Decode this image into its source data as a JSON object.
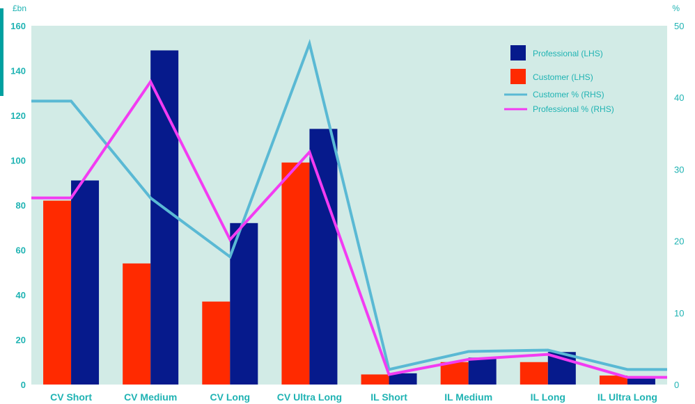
{
  "chart_data": {
    "type": "bar",
    "categories": [
      "CV Short",
      "CV Medium",
      "CV Long",
      "CV Ultra Long",
      "IL Short",
      "IL Medium",
      "IL Long",
      "IL Ultra Long"
    ],
    "y_left_unit": "£bn",
    "y_right_unit": "%",
    "ylim_left": [
      0,
      160
    ],
    "ylim_right": [
      0,
      50
    ],
    "yticks_left": [
      0,
      20,
      40,
      60,
      80,
      100,
      120,
      140,
      160
    ],
    "yticks_right": [
      0,
      10,
      20,
      30,
      40,
      50
    ],
    "grid": false,
    "legend_position": "top-right",
    "series": [
      {
        "name": "Customer (LHS)",
        "kind": "bar",
        "axis": "left",
        "color": "#ff2a00",
        "values": [
          82,
          54,
          37,
          99,
          4.5,
          10,
          10,
          4
        ]
      },
      {
        "name": "Professional (LHS)",
        "kind": "bar",
        "axis": "left",
        "color": "#061a8c",
        "values": [
          91,
          149,
          72,
          114,
          5,
          12,
          14.5,
          3
        ]
      },
      {
        "name": "Customer % (RHS)",
        "kind": "line",
        "axis": "right",
        "color": "#5ab9d4",
        "values": [
          39.5,
          26,
          17.8,
          47.5,
          2.1,
          4.6,
          4.8,
          2.1
        ]
      },
      {
        "name": "Professional % (RHS)",
        "kind": "line",
        "axis": "right",
        "color": "#f23cf2",
        "values": [
          26,
          42.2,
          20.2,
          32.4,
          1.4,
          3.5,
          4.2,
          1
        ]
      }
    ],
    "line_endpoints": {
      "Customer % (RHS)": [
        39.5,
        2.1
      ],
      "Professional % (RHS)": [
        26,
        1
      ]
    },
    "legend_order": [
      "Professional (LHS)",
      "Customer (LHS)",
      "Customer % (RHS)",
      "Professional % (RHS)"
    ]
  },
  "colors": {
    "plot_background": "#d2ebe6",
    "axis_text": "#1fb3b3",
    "accent_bar": "#00a0a0"
  }
}
